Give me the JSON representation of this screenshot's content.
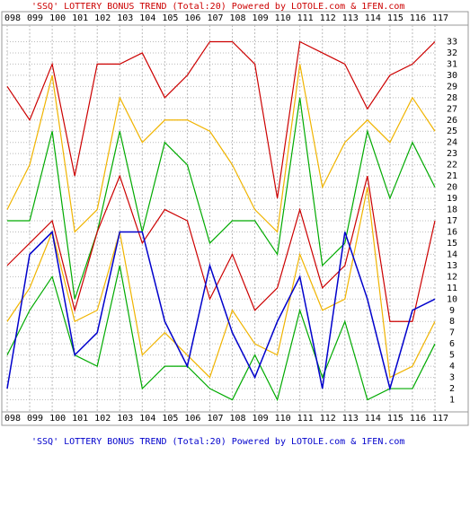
{
  "chart_data": {
    "type": "line",
    "title": "'SSQ' LOTTERY BONUS TREND (Total:20)  Powered by LOTOLE.com & 1FEN.com",
    "caption": "'SSQ' LOTTERY BONUS TREND (Total:20)  Powered by LOTOLE.com & 1FEN.com",
    "categories": [
      "098",
      "099",
      "100",
      "101",
      "102",
      "103",
      "104",
      "105",
      "106",
      "107",
      "108",
      "109",
      "110",
      "111",
      "112",
      "113",
      "114",
      "115",
      "116",
      "117"
    ],
    "series": [
      {
        "color": "#cc0000",
        "values": [
          29,
          26,
          31,
          21,
          31,
          31,
          32,
          28,
          30,
          33,
          33,
          31,
          19,
          33,
          32,
          31,
          27,
          30,
          31,
          33
        ]
      },
      {
        "color": "#f0b400",
        "values": [
          18,
          22,
          30,
          16,
          18,
          28,
          24,
          26,
          26,
          25,
          22,
          18,
          16,
          31,
          20,
          24,
          26,
          24,
          28,
          25
        ]
      },
      {
        "color": "#00aa00",
        "values": [
          17,
          17,
          25,
          10,
          16,
          25,
          16,
          24,
          22,
          15,
          17,
          17,
          14,
          28,
          13,
          15,
          25,
          19,
          24,
          20
        ]
      },
      {
        "color": "#cc0000",
        "values": [
          13,
          15,
          17,
          9,
          16,
          21,
          15,
          18,
          17,
          10,
          14,
          9,
          11,
          18,
          11,
          13,
          21,
          8,
          8,
          17
        ]
      },
      {
        "color": "#f0b400",
        "values": [
          8,
          11,
          16,
          8,
          9,
          16,
          5,
          7,
          5,
          3,
          9,
          6,
          5,
          14,
          9,
          10,
          20,
          3,
          4,
          8
        ]
      },
      {
        "color": "#00aa00",
        "values": [
          5,
          9,
          12,
          5,
          4,
          13,
          2,
          4,
          4,
          2,
          1,
          5,
          1,
          9,
          3,
          8,
          1,
          2,
          2,
          6
        ]
      },
      {
        "color": "#0000cc",
        "values": [
          2,
          14,
          16,
          5,
          7,
          16,
          16,
          8,
          4,
          13,
          7,
          3,
          8,
          12,
          2,
          16,
          10,
          2,
          9,
          10
        ]
      }
    ],
    "ylim": [
      0,
      34
    ],
    "yticks": [
      1,
      2,
      3,
      4,
      5,
      6,
      7,
      8,
      9,
      10,
      11,
      12,
      13,
      14,
      15,
      16,
      17,
      18,
      19,
      20,
      21,
      22,
      23,
      24,
      25,
      26,
      27,
      28,
      29,
      30,
      31,
      32,
      33
    ],
    "grid": true
  }
}
